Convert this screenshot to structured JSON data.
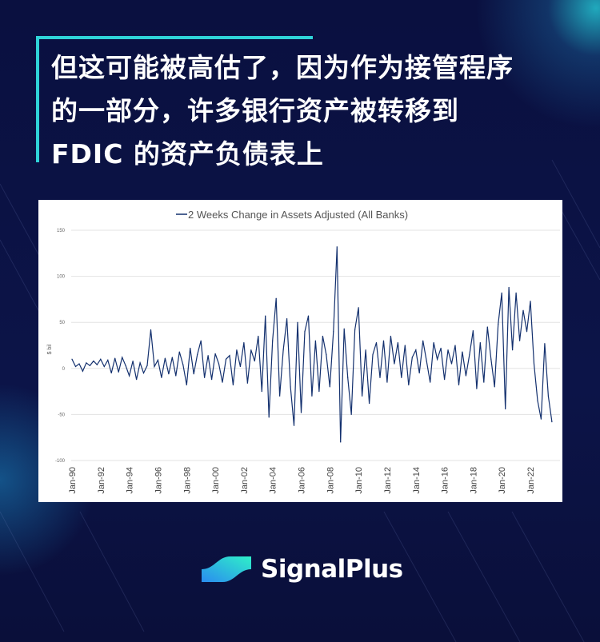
{
  "headline": {
    "line1": "但这可能被高估了，因为作为接管程序",
    "line2": "的一部分，许多银行资产被转移到",
    "line3": "FDIC 的资产负债表上"
  },
  "brand": {
    "name": "SignalPlus",
    "logo_icon": "signalplus-wave-logo",
    "accent": "#2fd3d8"
  },
  "chart_data": {
    "type": "line",
    "title": "2 Weeks Change in Assets Adjusted (All Banks)",
    "legend": "top-center",
    "ylabel": "$ bil",
    "xlabel": "",
    "ylim": [
      -100,
      150
    ],
    "yticks": [
      150,
      100,
      50,
      0,
      -50,
      -100
    ],
    "xticks": [
      "Jan-90",
      "Jan-92",
      "Jan-94",
      "Jan-96",
      "Jan-98",
      "Jan-00",
      "Jan-02",
      "Jan-04",
      "Jan-06",
      "Jan-08",
      "Jan-10",
      "Jan-12",
      "Jan-14",
      "Jan-16",
      "Jan-18",
      "Jan-20",
      "Jan-22"
    ],
    "grid": "horizontal",
    "series_color": "#13306e",
    "series": [
      {
        "name": "2 Weeks Change in Assets Adjusted (All Banks)",
        "x": [
          "1990-01",
          "1990-04",
          "1990-07",
          "1990-10",
          "1991-01",
          "1991-04",
          "1991-07",
          "1991-10",
          "1992-01",
          "1992-04",
          "1992-07",
          "1992-10",
          "1993-01",
          "1993-04",
          "1993-07",
          "1993-10",
          "1994-01",
          "1994-04",
          "1994-07",
          "1994-10",
          "1995-01",
          "1995-04",
          "1995-07",
          "1995-10",
          "1996-01",
          "1996-04",
          "1996-07",
          "1996-10",
          "1997-01",
          "1997-04",
          "1997-07",
          "1997-10",
          "1998-01",
          "1998-04",
          "1998-07",
          "1998-10",
          "1999-01",
          "1999-04",
          "1999-07",
          "1999-10",
          "2000-01",
          "2000-04",
          "2000-07",
          "2000-10",
          "2001-01",
          "2001-04",
          "2001-07",
          "2001-10",
          "2002-01",
          "2002-04",
          "2002-07",
          "2002-10",
          "2003-01",
          "2003-04",
          "2003-07",
          "2003-10",
          "2004-01",
          "2004-04",
          "2004-07",
          "2004-10",
          "2005-01",
          "2005-04",
          "2005-07",
          "2005-10",
          "2006-01",
          "2006-04",
          "2006-07",
          "2006-10",
          "2007-01",
          "2007-04",
          "2007-07",
          "2007-10",
          "2008-01",
          "2008-04",
          "2008-07",
          "2008-10",
          "2009-01",
          "2009-04",
          "2009-07",
          "2009-10",
          "2010-01",
          "2010-04",
          "2010-07",
          "2010-10",
          "2011-01",
          "2011-04",
          "2011-07",
          "2011-10",
          "2012-01",
          "2012-04",
          "2012-07",
          "2012-10",
          "2013-01",
          "2013-04",
          "2013-07",
          "2013-10",
          "2014-01",
          "2014-04",
          "2014-07",
          "2014-10",
          "2015-01",
          "2015-04",
          "2015-07",
          "2015-10",
          "2016-01",
          "2016-04",
          "2016-07",
          "2016-10",
          "2017-01",
          "2017-04",
          "2017-07",
          "2017-10",
          "2018-01",
          "2018-04",
          "2018-07",
          "2018-10",
          "2019-01",
          "2019-04",
          "2019-07",
          "2019-10",
          "2020-01",
          "2020-04",
          "2020-07",
          "2020-10",
          "2021-01",
          "2021-04",
          "2021-07",
          "2021-10",
          "2022-01",
          "2022-04",
          "2022-07",
          "2022-10",
          "2023-01",
          "2023-04",
          "2023-07"
        ],
        "values": [
          10,
          2,
          5,
          -3,
          6,
          3,
          8,
          4,
          10,
          2,
          9,
          -5,
          11,
          -4,
          12,
          3,
          -8,
          8,
          -12,
          6,
          -5,
          3,
          42,
          2,
          9,
          -10,
          11,
          -6,
          12,
          -8,
          18,
          4,
          -18,
          22,
          -6,
          15,
          30,
          -10,
          14,
          -12,
          16,
          5,
          -15,
          10,
          14,
          -18,
          20,
          2,
          28,
          -16,
          20,
          8,
          35,
          -25,
          57,
          -53,
          30,
          76,
          -30,
          20,
          54,
          -20,
          -62,
          50,
          -48,
          40,
          57,
          -30,
          30,
          -25,
          35,
          15,
          -20,
          40,
          132,
          -80,
          43,
          -10,
          -50,
          42,
          66,
          -30,
          20,
          -38,
          15,
          28,
          -10,
          30,
          -15,
          35,
          5,
          28,
          -10,
          25,
          -18,
          12,
          20,
          -5,
          30,
          8,
          -15,
          28,
          10,
          22,
          -12,
          20,
          5,
          25,
          -18,
          18,
          -8,
          15,
          41,
          -22,
          28,
          -15,
          45,
          10,
          -20,
          48,
          82,
          -44,
          88,
          20,
          82,
          30,
          63,
          40,
          73,
          5,
          -35,
          -55,
          27,
          -30,
          -58
        ]
      }
    ]
  }
}
